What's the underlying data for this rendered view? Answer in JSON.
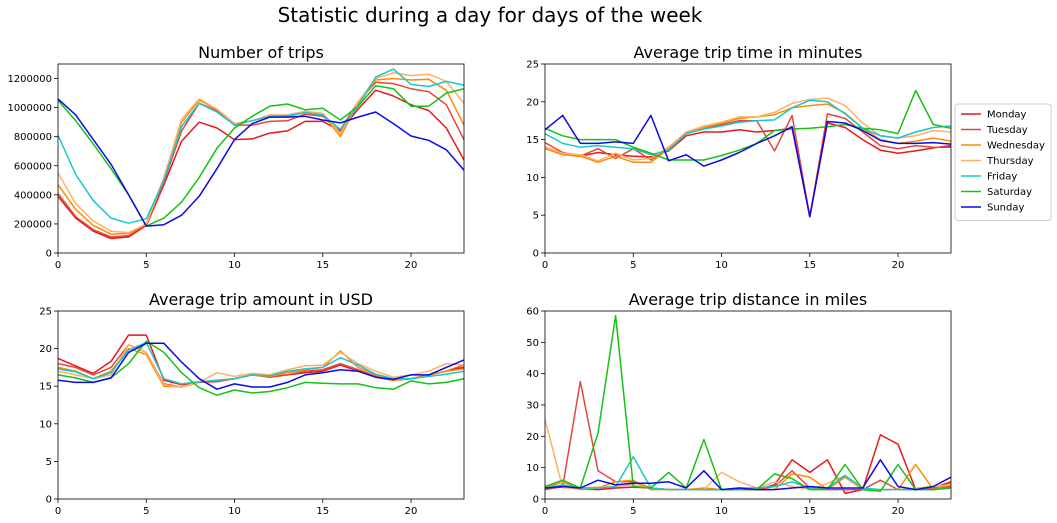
{
  "figure": {
    "title": "Statistic during a day for days of the week"
  },
  "legend": {
    "placement": "right, beside top-right panel",
    "entries": [
      {
        "label": "Monday",
        "color": "#e41a1c"
      },
      {
        "label": "Tuesday",
        "color": "#e8453a"
      },
      {
        "label": "Wednesday",
        "color": "#ff8c00"
      },
      {
        "label": "Thursday",
        "color": "#ffb066"
      },
      {
        "label": "Friday",
        "color": "#17c7cf"
      },
      {
        "label": "Saturday",
        "color": "#15c215"
      },
      {
        "label": "Sunday",
        "color": "#0b0be6"
      }
    ]
  },
  "chart_data": [
    {
      "type": "line",
      "title": "Number of trips",
      "xlim": [
        0,
        23
      ],
      "ylim": [
        0,
        1300000
      ],
      "xticks": [
        0,
        5,
        10,
        15,
        20
      ],
      "yticks": [
        0,
        200000,
        400000,
        600000,
        800000,
        1000000,
        1200000
      ],
      "grid": false,
      "x": [
        0,
        1,
        2,
        3,
        4,
        5,
        6,
        7,
        8,
        9,
        10,
        11,
        12,
        13,
        14,
        15,
        16,
        17,
        18,
        19,
        20,
        21,
        22,
        23
      ],
      "series": [
        {
          "name": "Monday",
          "values": [
            390000,
            240000,
            150000,
            100000,
            110000,
            190000,
            470000,
            770000,
            900000,
            860000,
            780000,
            785000,
            825000,
            840000,
            905000,
            905000,
            840000,
            990000,
            1120000,
            1080000,
            1020000,
            980000,
            860000,
            640000
          ]
        },
        {
          "name": "Tuesday",
          "values": [
            410000,
            250000,
            160000,
            110000,
            120000,
            195000,
            490000,
            840000,
            1030000,
            980000,
            880000,
            880000,
            905000,
            910000,
            955000,
            940000,
            850000,
            1040000,
            1175000,
            1165000,
            1130000,
            1110000,
            1020000,
            780000
          ]
        },
        {
          "name": "Wednesday",
          "values": [
            470000,
            300000,
            190000,
            130000,
            135000,
            200000,
            510000,
            900000,
            1050000,
            990000,
            890000,
            910000,
            940000,
            935000,
            970000,
            955000,
            800000,
            1030000,
            1190000,
            1200000,
            1190000,
            1195000,
            1120000,
            880000
          ]
        },
        {
          "name": "Thursday",
          "values": [
            550000,
            340000,
            220000,
            150000,
            140000,
            200000,
            520000,
            920000,
            1060000,
            990000,
            890000,
            910000,
            950000,
            950000,
            975000,
            960000,
            820000,
            1040000,
            1200000,
            1240000,
            1220000,
            1230000,
            1180000,
            1030000
          ]
        },
        {
          "name": "Friday",
          "values": [
            810000,
            540000,
            360000,
            240000,
            205000,
            235000,
            500000,
            870000,
            1030000,
            970000,
            880000,
            910000,
            940000,
            945000,
            965000,
            950000,
            850000,
            1010000,
            1210000,
            1265000,
            1160000,
            1145000,
            1180000,
            1155000
          ]
        },
        {
          "name": "Saturday",
          "values": [
            1050000,
            910000,
            750000,
            580000,
            400000,
            185000,
            240000,
            350000,
            520000,
            720000,
            860000,
            940000,
            1010000,
            1025000,
            985000,
            995000,
            915000,
            1010000,
            1150000,
            1130000,
            1010000,
            1010000,
            1100000,
            1130000
          ]
        },
        {
          "name": "Sunday",
          "values": [
            1060000,
            950000,
            780000,
            610000,
            400000,
            185000,
            195000,
            260000,
            390000,
            580000,
            780000,
            890000,
            935000,
            935000,
            940000,
            915000,
            895000,
            935000,
            970000,
            890000,
            805000,
            775000,
            710000,
            570000
          ]
        }
      ]
    },
    {
      "type": "line",
      "title": "Average trip time in minutes",
      "xlim": [
        0,
        23
      ],
      "ylim": [
        0,
        25
      ],
      "xticks": [
        0,
        5,
        10,
        15,
        20
      ],
      "yticks": [
        0,
        5,
        10,
        15,
        20,
        25
      ],
      "grid": false,
      "x": [
        0,
        1,
        2,
        3,
        4,
        5,
        6,
        7,
        8,
        9,
        10,
        11,
        12,
        13,
        14,
        15,
        16,
        17,
        18,
        19,
        20,
        21,
        22,
        23
      ],
      "series": [
        {
          "name": "Monday",
          "values": [
            14.0,
            13.2,
            12.8,
            13.3,
            13.0,
            12.8,
            12.7,
            13.5,
            15.5,
            16.0,
            16.0,
            16.3,
            16.0,
            16.2,
            16.5,
            4.8,
            17.2,
            16.6,
            15.0,
            13.6,
            13.2,
            13.5,
            13.9,
            14.2
          ]
        },
        {
          "name": "Tuesday",
          "values": [
            14.6,
            13.3,
            12.8,
            13.8,
            12.5,
            13.8,
            12.3,
            14.0,
            15.8,
            16.5,
            17.0,
            17.5,
            17.5,
            13.5,
            18.2,
            4.8,
            18.4,
            17.8,
            16.0,
            14.2,
            13.8,
            14.2,
            14.0,
            14.0
          ]
        },
        {
          "name": "Wednesday",
          "values": [
            13.8,
            13.0,
            12.8,
            12.0,
            12.8,
            12.0,
            12.0,
            13.8,
            15.8,
            16.6,
            17.2,
            17.8,
            18.0,
            18.3,
            19.2,
            19.5,
            19.7,
            18.5,
            16.5,
            15.0,
            14.5,
            14.8,
            15.2,
            14.8
          ]
        },
        {
          "name": "Thursday",
          "values": [
            14.0,
            13.2,
            13.0,
            12.2,
            13.2,
            12.3,
            12.5,
            14.0,
            16.0,
            16.8,
            17.3,
            18.0,
            18.0,
            18.6,
            19.8,
            20.3,
            20.5,
            19.5,
            17.2,
            15.5,
            15.2,
            15.5,
            16.2,
            16.0
          ]
        },
        {
          "name": "Friday",
          "values": [
            15.8,
            14.5,
            14.0,
            14.2,
            14.0,
            13.8,
            13.0,
            13.6,
            15.8,
            16.4,
            16.8,
            17.3,
            17.5,
            17.6,
            19.2,
            20.2,
            20.0,
            18.4,
            16.5,
            15.5,
            15.2,
            16.0,
            16.6,
            16.8
          ]
        },
        {
          "name": "Saturday",
          "values": [
            16.5,
            15.5,
            15.0,
            15.0,
            15.0,
            14.0,
            13.2,
            12.3,
            12.3,
            12.3,
            12.9,
            13.6,
            14.5,
            16.2,
            16.4,
            16.5,
            16.7,
            17.0,
            16.5,
            16.3,
            15.8,
            21.5,
            17.0,
            16.5
          ]
        },
        {
          "name": "Sunday",
          "values": [
            16.3,
            18.2,
            14.5,
            14.5,
            14.7,
            14.5,
            18.2,
            12.2,
            13.0,
            11.5,
            12.3,
            13.3,
            14.5,
            15.5,
            16.7,
            4.8,
            17.4,
            17.2,
            16.2,
            14.9,
            14.5,
            14.5,
            14.6,
            14.4
          ]
        }
      ]
    },
    {
      "type": "line",
      "title": "Average trip amount in USD",
      "xlim": [
        0,
        23
      ],
      "ylim": [
        0,
        25
      ],
      "xticks": [
        0,
        5,
        10,
        15,
        20
      ],
      "yticks": [
        0,
        5,
        10,
        15,
        20,
        25
      ],
      "grid": false,
      "x": [
        0,
        1,
        2,
        3,
        4,
        5,
        6,
        7,
        8,
        9,
        10,
        11,
        12,
        13,
        14,
        15,
        16,
        17,
        18,
        19,
        20,
        21,
        22,
        23
      ],
      "series": [
        {
          "name": "Monday",
          "values": [
            18.7,
            17.7,
            16.7,
            18.3,
            21.8,
            21.8,
            15.8,
            15.2,
            15.5,
            15.7,
            16.0,
            16.5,
            16.3,
            16.5,
            16.8,
            17.0,
            17.8,
            17.0,
            16.2,
            15.8,
            16.0,
            16.5,
            17.0,
            17.5
          ]
        },
        {
          "name": "Tuesday",
          "values": [
            18.0,
            17.5,
            16.5,
            17.5,
            20.5,
            19.5,
            15.3,
            14.9,
            15.5,
            15.6,
            16.0,
            16.5,
            16.2,
            16.5,
            17.0,
            17.2,
            18.0,
            17.2,
            16.3,
            15.9,
            16.0,
            16.5,
            17.0,
            17.8
          ]
        },
        {
          "name": "Wednesday",
          "values": [
            17.5,
            17.0,
            16.0,
            17.0,
            20.0,
            19.2,
            15.0,
            14.9,
            15.6,
            15.8,
            16.0,
            16.5,
            16.3,
            16.8,
            17.2,
            17.5,
            19.7,
            17.5,
            16.5,
            15.8,
            16.0,
            16.5,
            17.0,
            17.3
          ]
        },
        {
          "name": "Thursday",
          "values": [
            17.0,
            16.5,
            16.0,
            16.5,
            20.5,
            19.5,
            15.2,
            14.9,
            15.5,
            16.8,
            16.3,
            16.7,
            16.5,
            17.2,
            17.7,
            17.8,
            19.5,
            18.0,
            17.0,
            16.2,
            16.5,
            17.0,
            18.0,
            17.8
          ]
        },
        {
          "name": "Friday",
          "values": [
            17.3,
            16.9,
            16.0,
            16.8,
            19.8,
            20.8,
            16.0,
            15.3,
            15.6,
            15.8,
            16.0,
            16.5,
            16.4,
            17.0,
            17.3,
            17.5,
            18.8,
            17.8,
            16.6,
            16.0,
            16.0,
            16.3,
            16.6,
            17.0
          ]
        },
        {
          "name": "Saturday",
          "values": [
            16.5,
            16.1,
            15.5,
            16.1,
            18.0,
            21.0,
            19.5,
            16.8,
            14.8,
            13.8,
            14.5,
            14.1,
            14.3,
            14.8,
            15.5,
            15.4,
            15.3,
            15.3,
            14.8,
            14.6,
            15.7,
            15.3,
            15.5,
            16.0
          ]
        },
        {
          "name": "Sunday",
          "values": [
            15.8,
            15.5,
            15.5,
            16.1,
            19.5,
            20.7,
            20.7,
            18.2,
            16.0,
            14.6,
            15.3,
            14.9,
            14.9,
            15.5,
            16.5,
            16.8,
            17.2,
            17.0,
            16.2,
            15.9,
            16.5,
            16.5,
            17.5,
            18.5
          ]
        }
      ]
    },
    {
      "type": "line",
      "title": "Average trip distance in miles",
      "xlim": [
        0,
        23
      ],
      "ylim": [
        0,
        60
      ],
      "xticks": [
        0,
        5,
        10,
        15,
        20
      ],
      "yticks": [
        0,
        10,
        20,
        30,
        40,
        50,
        60
      ],
      "grid": false,
      "x": [
        0,
        1,
        2,
        3,
        4,
        5,
        6,
        7,
        8,
        9,
        10,
        11,
        12,
        13,
        14,
        15,
        16,
        17,
        18,
        19,
        20,
        21,
        22,
        23
      ],
      "series": [
        {
          "name": "Monday",
          "values": [
            3.5,
            3.8,
            3.2,
            3.0,
            3.5,
            3.8,
            3.5,
            3.0,
            3.0,
            3.0,
            3.0,
            3.0,
            3.0,
            4.5,
            12.5,
            8.5,
            12.5,
            1.8,
            3.0,
            20.5,
            17.5,
            3.0,
            3.5,
            5.5
          ]
        },
        {
          "name": "Tuesday",
          "values": [
            3.0,
            4.0,
            37.5,
            9.0,
            5.5,
            5.5,
            3.5,
            3.0,
            3.0,
            3.0,
            3.0,
            3.0,
            3.0,
            4.0,
            9.0,
            3.5,
            3.0,
            3.0,
            3.0,
            6.0,
            3.0,
            3.0,
            3.5,
            4.0
          ]
        },
        {
          "name": "Wednesday",
          "values": [
            3.5,
            5.5,
            3.0,
            3.5,
            5.5,
            6.0,
            3.0,
            3.0,
            3.0,
            3.5,
            3.0,
            3.0,
            3.0,
            3.0,
            8.0,
            7.0,
            3.0,
            7.0,
            3.0,
            3.0,
            3.0,
            11.0,
            3.0,
            5.0
          ]
        },
        {
          "name": "Thursday",
          "values": [
            25.5,
            3.5,
            3.5,
            3.8,
            4.0,
            4.5,
            3.5,
            3.0,
            3.0,
            3.0,
            8.5,
            5.5,
            3.5,
            5.5,
            4.0,
            3.0,
            5.0,
            7.5,
            3.0,
            3.0,
            3.0,
            3.5,
            4.0,
            4.5
          ]
        },
        {
          "name": "Friday",
          "values": [
            3.5,
            4.5,
            3.5,
            3.5,
            4.0,
            13.5,
            3.5,
            3.0,
            3.0,
            3.0,
            3.0,
            3.5,
            3.5,
            4.0,
            5.5,
            3.5,
            3.5,
            7.5,
            3.5,
            3.0,
            3.0,
            3.0,
            3.0,
            3.5
          ]
        },
        {
          "name": "Saturday",
          "values": [
            4.0,
            6.0,
            3.5,
            21.0,
            58.5,
            4.0,
            3.5,
            8.5,
            3.5,
            19.0,
            3.0,
            3.0,
            3.0,
            8.0,
            6.5,
            3.0,
            3.0,
            11.0,
            3.0,
            2.5,
            11.0,
            3.0,
            3.0,
            3.5
          ]
        },
        {
          "name": "Sunday",
          "values": [
            3.5,
            4.0,
            3.5,
            6.0,
            4.5,
            5.0,
            5.0,
            5.5,
            3.5,
            9.0,
            3.0,
            3.5,
            3.0,
            3.0,
            3.5,
            4.0,
            3.5,
            3.5,
            3.5,
            12.5,
            4.0,
            3.0,
            4.0,
            7.0
          ]
        }
      ]
    }
  ]
}
